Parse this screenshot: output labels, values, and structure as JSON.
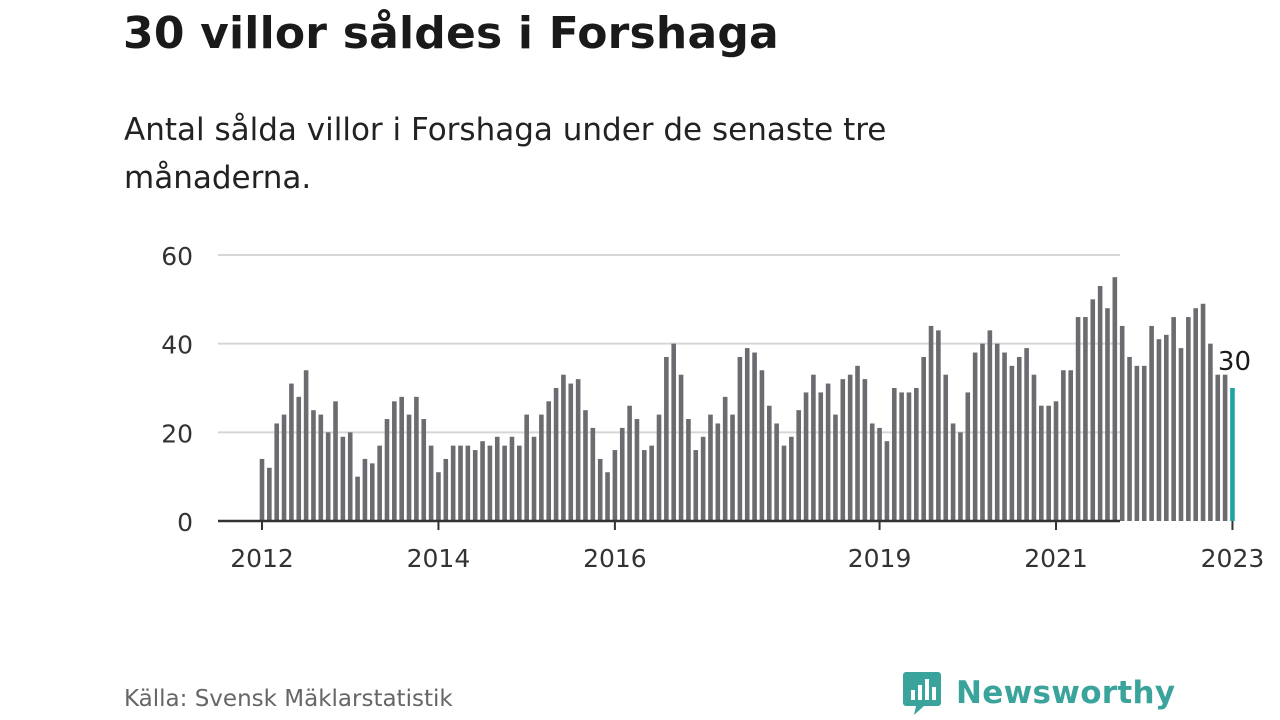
{
  "header": {
    "title": "30 villor såldes i Forshaga",
    "subtitle": "Antal sålda villor i Forshaga under de senaste tre månaderna."
  },
  "footer": {
    "source": "Källa: Svensk Mäklarstatistik",
    "brand": "Newsworthy",
    "brand_icon": "bar-chart-speech-bubble-icon"
  },
  "colors": {
    "bar": "#6b6b70",
    "highlight": "#1fa3a3",
    "grid": "#d6d6d6",
    "axis": "#333333",
    "brand": "#3aa39b"
  },
  "chart_data": {
    "type": "bar",
    "title": "30 villor såldes i Forshaga",
    "xlabel": "",
    "ylabel": "",
    "ylim": [
      0,
      60
    ],
    "yticks": [
      0,
      20,
      40,
      60
    ],
    "grid": true,
    "x_start": "2012-01",
    "x_tick_labels": [
      "2012",
      "2014",
      "2016",
      "2019",
      "2021",
      "2023"
    ],
    "x_tick_months": [
      "2012-01",
      "2014-01",
      "2016-01",
      "2019-01",
      "2021-01",
      "2023-01"
    ],
    "highlight_label": "30",
    "series": [
      {
        "values": [
          14,
          12,
          22,
          24,
          31,
          28,
          34,
          25,
          24,
          20,
          27,
          19,
          20,
          10,
          14,
          13,
          17,
          23,
          27,
          28,
          24,
          28,
          23,
          17,
          11,
          14,
          17,
          17,
          17,
          16,
          18,
          17,
          19,
          17,
          19,
          17,
          24,
          19,
          24,
          27,
          30,
          33,
          31,
          32,
          25,
          21,
          14,
          11,
          16,
          21,
          26,
          23,
          16,
          17,
          24,
          37,
          40,
          33,
          23,
          16,
          19,
          24,
          22,
          28,
          24,
          37,
          39,
          38,
          34,
          26,
          22,
          17,
          19,
          25,
          29,
          33,
          29,
          31,
          24,
          32,
          33,
          35,
          32,
          22,
          21,
          18,
          30,
          29,
          29,
          30,
          37,
          44,
          43,
          33,
          22,
          20,
          29,
          38,
          40,
          43,
          40,
          38,
          35,
          37,
          39,
          33,
          26,
          26,
          27,
          34,
          34,
          46,
          46,
          50,
          53,
          48,
          55,
          44,
          37,
          35,
          35,
          44,
          41,
          42,
          46,
          39,
          46,
          48,
          49,
          40,
          33,
          33,
          30
        ]
      }
    ]
  }
}
